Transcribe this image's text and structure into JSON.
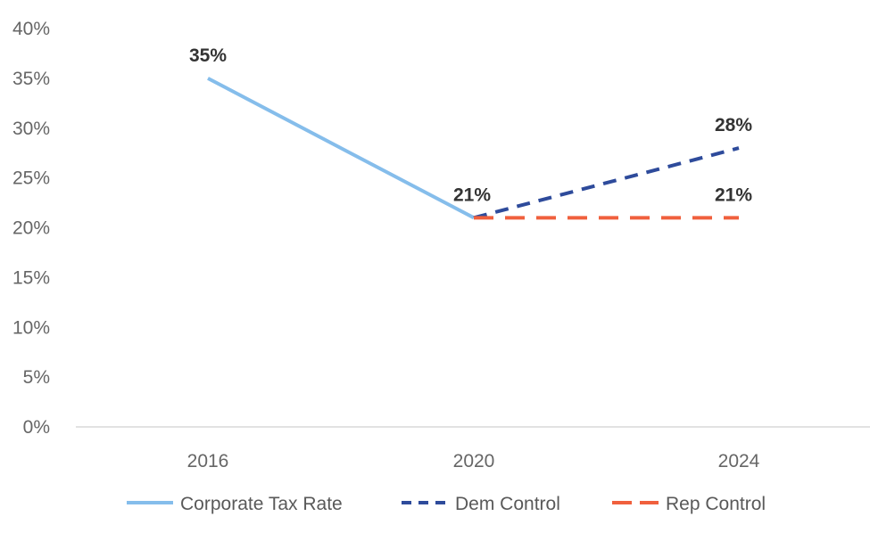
{
  "chart_data": {
    "type": "line",
    "categories": [
      "2016",
      "2020",
      "2024"
    ],
    "ylim": [
      0,
      40
    ],
    "yticks": [
      0,
      5,
      10,
      15,
      20,
      25,
      30,
      35,
      40
    ],
    "ytick_labels": [
      "0%",
      "5%",
      "10%",
      "15%",
      "20%",
      "25%",
      "30%",
      "35%",
      "40%"
    ],
    "legend_position": "bottom",
    "grid": false,
    "series": [
      {
        "name": "Corporate Tax Rate",
        "color": "#85BDEB",
        "style": "solid",
        "points": [
          {
            "x": "2016",
            "y": 35
          },
          {
            "x": "2020",
            "y": 21
          }
        ],
        "labels": [
          {
            "x": "2016",
            "y": 35,
            "text": "35%"
          },
          {
            "x": "2020",
            "y": 21,
            "text": "21%"
          }
        ]
      },
      {
        "name": "Dem Control",
        "color": "#2E4B9B",
        "style": "dashed",
        "points": [
          {
            "x": "2020",
            "y": 21
          },
          {
            "x": "2024",
            "y": 28
          }
        ],
        "labels": [
          {
            "x": "2024",
            "y": 28,
            "text": "28%"
          }
        ]
      },
      {
        "name": "Rep Control",
        "color": "#F0603D",
        "style": "longdash",
        "points": [
          {
            "x": "2020",
            "y": 21
          },
          {
            "x": "2024",
            "y": 21
          }
        ],
        "labels": [
          {
            "x": "2024",
            "y": 21,
            "text": "21%"
          }
        ]
      }
    ]
  }
}
